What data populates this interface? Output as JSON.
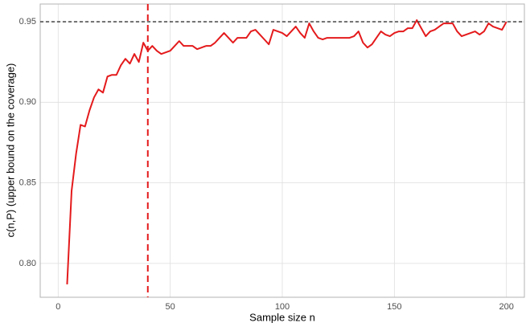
{
  "chart_data": {
    "type": "line",
    "x_label": "Sample size n",
    "y_label": "c(n,P) (upper bound on the coverage)",
    "x": [
      4,
      6,
      8,
      10,
      12,
      14,
      16,
      18,
      20,
      22,
      24,
      26,
      28,
      30,
      32,
      34,
      36,
      38,
      40,
      42,
      44,
      46,
      48,
      50,
      52,
      54,
      56,
      58,
      60,
      62,
      64,
      66,
      68,
      70,
      72,
      74,
      76,
      78,
      80,
      82,
      84,
      86,
      88,
      90,
      92,
      94,
      96,
      98,
      100,
      102,
      104,
      106,
      108,
      110,
      112,
      114,
      116,
      118,
      120,
      122,
      124,
      126,
      128,
      130,
      132,
      134,
      136,
      138,
      140,
      142,
      144,
      146,
      148,
      150,
      152,
      154,
      156,
      158,
      160,
      162,
      164,
      166,
      168,
      170,
      172,
      174,
      176,
      178,
      180,
      182,
      184,
      186,
      188,
      190,
      192,
      194,
      196,
      198,
      200
    ],
    "series": [
      {
        "color": "#e41a1c",
        "values": [
          0.787,
          0.845,
          0.868,
          0.886,
          0.885,
          0.895,
          0.903,
          0.908,
          0.906,
          0.916,
          0.917,
          0.917,
          0.923,
          0.927,
          0.924,
          0.93,
          0.925,
          0.937,
          0.932,
          0.935,
          0.932,
          0.93,
          0.931,
          0.932,
          0.935,
          0.938,
          0.935,
          0.935,
          0.935,
          0.933,
          0.934,
          0.935,
          0.935,
          0.937,
          0.94,
          0.943,
          0.94,
          0.937,
          0.94,
          0.94,
          0.94,
          0.944,
          0.945,
          0.942,
          0.939,
          0.936,
          0.945,
          0.944,
          0.943,
          0.941,
          0.944,
          0.947,
          0.943,
          0.94,
          0.949,
          0.944,
          0.94,
          0.939,
          0.94,
          0.94,
          0.94,
          0.94,
          0.94,
          0.94,
          0.941,
          0.944,
          0.937,
          0.934,
          0.936,
          0.94,
          0.944,
          0.942,
          0.941,
          0.943,
          0.944,
          0.944,
          0.946,
          0.946,
          0.951,
          0.946,
          0.941,
          0.944,
          0.945,
          0.947,
          0.949,
          0.949,
          0.949,
          0.944,
          0.941,
          0.942,
          0.943,
          0.944,
          0.942,
          0.944,
          0.949,
          0.947,
          0.946,
          0.945,
          0.95
        ]
      }
    ],
    "vline": {
      "value": 40,
      "color": "#e41a1c"
    },
    "hline": {
      "value": 0.95,
      "color": "#333333"
    },
    "xlim": [
      -8,
      208
    ],
    "ylim": [
      0.779,
      0.961
    ],
    "xticks": [
      0,
      50,
      100,
      150,
      200
    ],
    "yticks": [
      {
        "value": 0.8,
        "label": "0.80"
      },
      {
        "value": 0.85,
        "label": "0.85"
      },
      {
        "value": 0.9,
        "label": "0.90"
      },
      {
        "value": 0.95,
        "label": "0.95"
      }
    ],
    "grid": true
  }
}
